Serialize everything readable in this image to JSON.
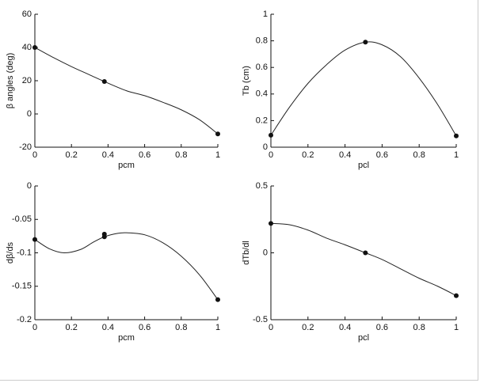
{
  "chart_data": [
    {
      "type": "line",
      "xlabel": "pcm",
      "ylabel": "β angles (deg)",
      "xlim": [
        0,
        1
      ],
      "ylim": [
        -20,
        60
      ],
      "xticks": [
        0,
        0.2,
        0.4,
        0.6,
        0.8,
        1
      ],
      "yticks": [
        -20,
        0,
        20,
        40,
        60
      ],
      "series": [
        {
          "style": "line",
          "color": "#222222",
          "x": [
            0,
            0.1,
            0.2,
            0.3,
            0.38,
            0.5,
            0.6,
            0.7,
            0.8,
            0.9,
            1
          ],
          "values": [
            40,
            34,
            28.5,
            23.5,
            19.5,
            14,
            11,
            7,
            2.5,
            -3.5,
            -12
          ]
        },
        {
          "style": "markers",
          "color": "#111111",
          "x": [
            0,
            0.38,
            1
          ],
          "values": [
            40,
            19.5,
            -12
          ]
        }
      ]
    },
    {
      "type": "line",
      "xlabel": "pcl",
      "ylabel": "Tb (cm)",
      "xlim": [
        0,
        1
      ],
      "ylim": [
        0,
        1
      ],
      "xticks": [
        0,
        0.2,
        0.4,
        0.6,
        0.8,
        1
      ],
      "yticks": [
        0,
        0.2,
        0.4,
        0.6,
        0.8,
        1
      ],
      "series": [
        {
          "style": "line",
          "color": "#222222",
          "x": [
            0,
            0.1,
            0.2,
            0.3,
            0.4,
            0.51,
            0.6,
            0.7,
            0.8,
            0.9,
            1
          ],
          "values": [
            0.09,
            0.3,
            0.48,
            0.62,
            0.73,
            0.79,
            0.77,
            0.68,
            0.52,
            0.32,
            0.085
          ]
        },
        {
          "style": "markers",
          "color": "#111111",
          "x": [
            0,
            0.51,
            1
          ],
          "values": [
            0.09,
            0.79,
            0.085
          ]
        }
      ]
    },
    {
      "type": "line",
      "xlabel": "pcm",
      "ylabel": "dβ/ds",
      "xlim": [
        0,
        1
      ],
      "ylim": [
        -0.2,
        0
      ],
      "xticks": [
        0,
        0.2,
        0.4,
        0.6,
        0.8,
        1
      ],
      "yticks": [
        -0.2,
        -0.15,
        -0.1,
        -0.05,
        0
      ],
      "series": [
        {
          "style": "line",
          "color": "#222222",
          "x": [
            0,
            0.08,
            0.16,
            0.25,
            0.32,
            0.38,
            0.45,
            0.5,
            0.6,
            0.7,
            0.8,
            0.9,
            1
          ],
          "values": [
            -0.08,
            -0.094,
            -0.1,
            -0.095,
            -0.084,
            -0.076,
            -0.071,
            -0.07,
            -0.073,
            -0.085,
            -0.105,
            -0.133,
            -0.17
          ]
        },
        {
          "style": "markers",
          "color": "#111111",
          "x": [
            0,
            0.38,
            0.38,
            1
          ],
          "values": [
            -0.08,
            -0.072,
            -0.076,
            -0.17
          ]
        }
      ]
    },
    {
      "type": "line",
      "xlabel": "pcl",
      "ylabel": "dTb/dl",
      "xlim": [
        0,
        1
      ],
      "ylim": [
        -0.5,
        0.5
      ],
      "xticks": [
        0,
        0.2,
        0.4,
        0.6,
        0.8,
        1
      ],
      "yticks": [
        -0.5,
        0,
        0.5
      ],
      "series": [
        {
          "style": "line",
          "color": "#222222",
          "x": [
            0,
            0.1,
            0.2,
            0.3,
            0.4,
            0.51,
            0.6,
            0.7,
            0.8,
            0.9,
            1
          ],
          "values": [
            0.22,
            0.21,
            0.17,
            0.11,
            0.06,
            0,
            -0.05,
            -0.12,
            -0.19,
            -0.25,
            -0.32
          ]
        },
        {
          "style": "markers",
          "color": "#111111",
          "x": [
            0,
            0.51,
            1
          ],
          "values": [
            0.22,
            0,
            -0.32
          ]
        }
      ]
    }
  ]
}
